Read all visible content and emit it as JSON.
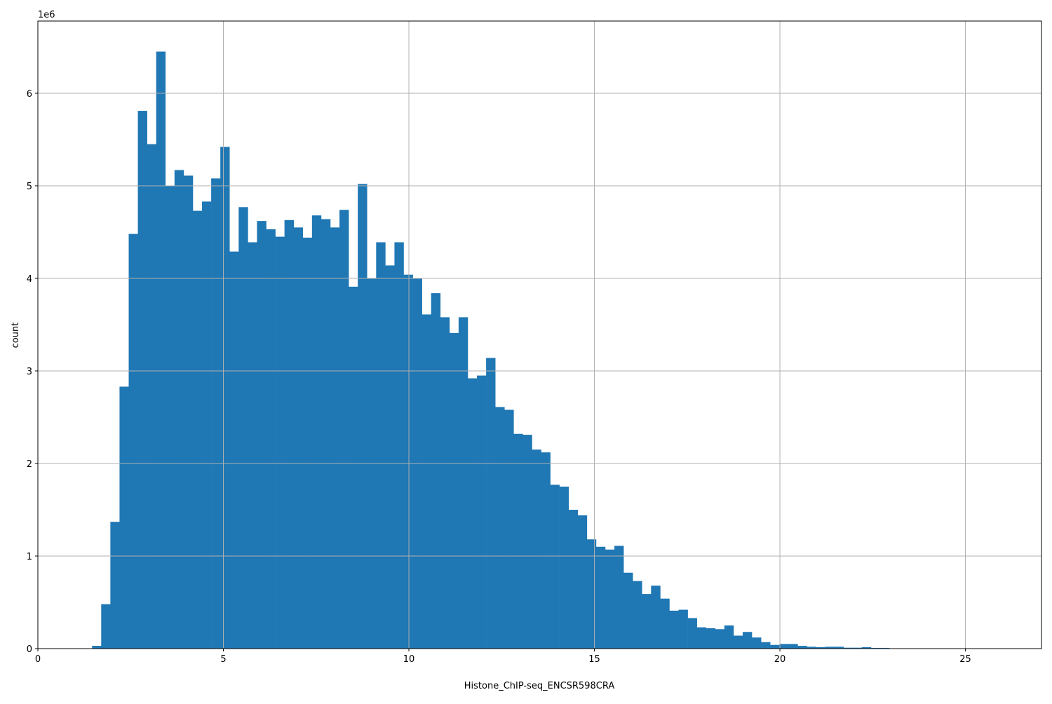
{
  "chart_data": {
    "type": "bar",
    "subtype": "histogram",
    "title": "",
    "xlabel": "Histone_ChIP-seq_ENCSR598CRA",
    "ylabel": "count",
    "y_offset_label": "1e6",
    "xlim": [
      0,
      27.05
    ],
    "ylim": [
      0,
      6.78
    ],
    "y_scale_multiplier": 1000000,
    "grid": true,
    "bar_color": "#1f77b4",
    "grid_color": "#b0b0b0",
    "bin_start": 1.46,
    "bin_width": 0.247,
    "values": [
      0.03,
      0.48,
      1.37,
      2.83,
      4.48,
      5.81,
      5.45,
      6.45,
      5.0,
      5.17,
      5.11,
      4.73,
      4.83,
      5.08,
      5.42,
      4.29,
      4.77,
      4.39,
      4.62,
      4.53,
      4.45,
      4.63,
      4.55,
      4.44,
      4.68,
      4.64,
      4.55,
      4.74,
      3.91,
      5.02,
      4.0,
      4.39,
      4.14,
      4.39,
      4.04,
      4.0,
      3.61,
      3.84,
      3.58,
      3.41,
      3.58,
      2.92,
      2.95,
      3.14,
      2.61,
      2.58,
      2.32,
      2.31,
      2.15,
      2.12,
      1.77,
      1.75,
      1.5,
      1.44,
      1.18,
      1.1,
      1.07,
      1.11,
      0.82,
      0.73,
      0.59,
      0.68,
      0.54,
      0.41,
      0.42,
      0.33,
      0.23,
      0.22,
      0.21,
      0.25,
      0.14,
      0.18,
      0.12,
      0.07,
      0.04,
      0.05,
      0.05,
      0.03,
      0.02,
      0.015,
      0.02,
      0.02,
      0.01,
      0.01,
      0.015,
      0.008,
      0.008
    ],
    "xticks": [
      0,
      5,
      10,
      15,
      20,
      25
    ],
    "xtick_labels": [
      "0",
      "5",
      "10",
      "15",
      "20",
      "25"
    ],
    "yticks": [
      0,
      1,
      2,
      3,
      4,
      5,
      6
    ],
    "ytick_labels": [
      "0",
      "1",
      "2",
      "3",
      "4",
      "5",
      "6"
    ]
  }
}
